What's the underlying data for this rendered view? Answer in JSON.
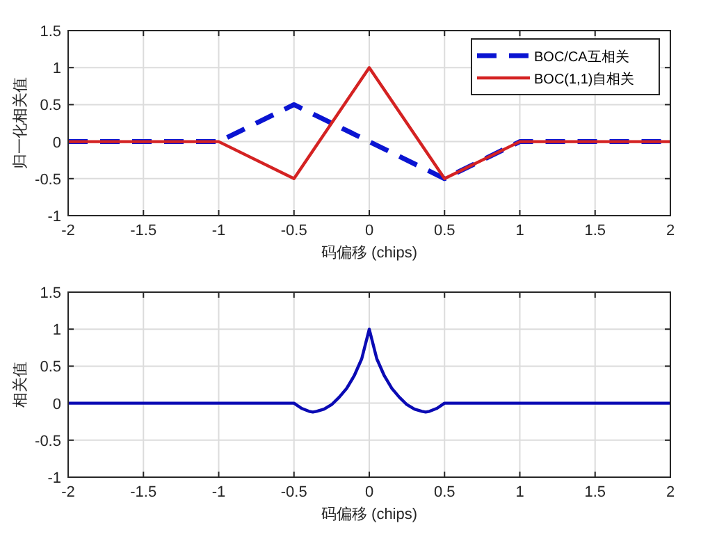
{
  "chart_data": [
    {
      "type": "line",
      "xlabel": "码偏移 (chips)",
      "ylabel": "归一化相关值",
      "xlim": [
        -2,
        2
      ],
      "ylim": [
        -1,
        1.5
      ],
      "xticks": [
        -2,
        -1.5,
        -1,
        -0.5,
        0,
        0.5,
        1,
        1.5,
        2
      ],
      "yticks": [
        -1,
        -0.5,
        0,
        0.5,
        1,
        1.5
      ],
      "grid": true,
      "legend": "top right",
      "series": [
        {
          "name": "BOC/CA互相关",
          "color": "#0a14d2",
          "line_style": "dashed",
          "x": [
            -2,
            -1,
            -0.5,
            0.5,
            1,
            2
          ],
          "values": [
            0,
            0,
            0.5,
            -0.5,
            0,
            0
          ]
        },
        {
          "name": "BOC(1,1)自相关",
          "color": "#d42222",
          "line_style": "solid",
          "x": [
            -2,
            -1,
            -0.5,
            0,
            0.5,
            1,
            2
          ],
          "values": [
            0,
            0,
            -0.5,
            1,
            -0.5,
            0,
            0
          ]
        }
      ]
    },
    {
      "type": "line",
      "xlabel": "码偏移 (chips)",
      "ylabel": "相关值",
      "xlim": [
        -2,
        2
      ],
      "ylim": [
        -1,
        1.5
      ],
      "xticks": [
        -2,
        -1.5,
        -1,
        -0.5,
        0,
        0.5,
        1,
        1.5,
        2
      ],
      "yticks": [
        -1,
        -0.5,
        0,
        0.5,
        1,
        1.5
      ],
      "grid": true,
      "series": [
        {
          "color": "#0a0ab4",
          "line_style": "solid",
          "x": [
            -2,
            -0.5,
            -0.45,
            -0.4,
            -0.375,
            -0.35,
            -0.3,
            -0.25,
            -0.2,
            -0.15,
            -0.1,
            -0.05,
            0,
            0.05,
            0.1,
            0.15,
            0.2,
            0.25,
            0.3,
            0.35,
            0.375,
            0.4,
            0.45,
            0.5,
            2
          ],
          "values": [
            0,
            0,
            -0.07,
            -0.11,
            -0.12,
            -0.11,
            -0.08,
            -0.02,
            0.08,
            0.2,
            0.37,
            0.6,
            1,
            0.6,
            0.37,
            0.2,
            0.08,
            -0.02,
            -0.08,
            -0.11,
            -0.12,
            -0.11,
            -0.07,
            0,
            0
          ]
        }
      ]
    }
  ]
}
